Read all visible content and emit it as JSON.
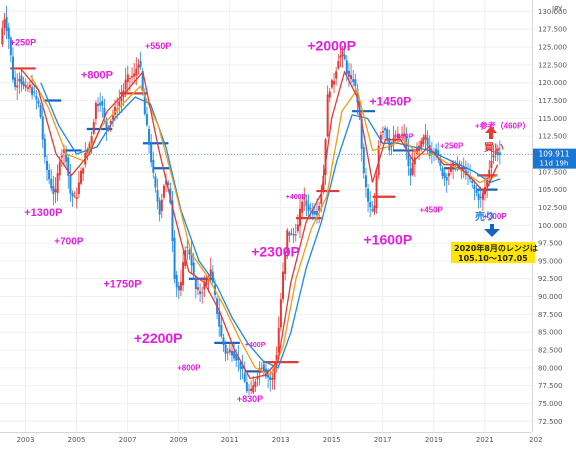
{
  "chart_data": {
    "type": "candlestick",
    "currency_label": "JPY",
    "x_ticks": [
      "2003",
      "2005",
      "2007",
      "2009",
      "2011",
      "2013",
      "2015",
      "2017",
      "2019",
      "2021",
      "202"
    ],
    "x_range": [
      2002.0,
      2022.85
    ],
    "y_ticks": [
      "130.000",
      "127.500",
      "125.000",
      "122.500",
      "120.000",
      "117.500",
      "115.000",
      "112.500",
      "110.000",
      "107.500",
      "105.000",
      "102.500",
      "100.000",
      "97.500",
      "95.000",
      "92.500",
      "90.000",
      "87.500",
      "85.000",
      "82.500",
      "80.000",
      "77.500",
      "75.000",
      "72.500"
    ],
    "y_range": [
      71.0,
      131.6
    ],
    "last_price": "109.911",
    "countdown": "11d 19h",
    "last_value": 109.911,
    "colors": {
      "up": "#e53935",
      "down": "#1e88e5",
      "ma_fast": "#e53935",
      "ma_mid": "#f39c12",
      "ma_slow": "#1e88e5",
      "level_up": "#e53935",
      "level_down": "#1565c0",
      "annotation": "#e71de2",
      "price_tag": "#1976d2"
    },
    "price_path": [
      [
        2002.0,
        124.0
      ],
      [
        2002.2,
        129.5
      ],
      [
        2002.4,
        126.0
      ],
      [
        2002.6,
        119.0
      ],
      [
        2002.8,
        121.0
      ],
      [
        2003.0,
        119.0
      ],
      [
        2003.2,
        119.5
      ],
      [
        2003.4,
        118.0
      ],
      [
        2003.6,
        116.5
      ],
      [
        2003.8,
        109.0
      ],
      [
        2004.0,
        106.0
      ],
      [
        2004.2,
        104.0
      ],
      [
        2004.4,
        110.0
      ],
      [
        2004.6,
        110.5
      ],
      [
        2004.8,
        104.5
      ],
      [
        2005.0,
        103.5
      ],
      [
        2005.2,
        107.0
      ],
      [
        2005.4,
        110.0
      ],
      [
        2005.6,
        112.0
      ],
      [
        2005.8,
        117.0
      ],
      [
        2006.0,
        117.5
      ],
      [
        2006.2,
        113.5
      ],
      [
        2006.4,
        115.0
      ],
      [
        2006.6,
        116.5
      ],
      [
        2006.8,
        118.0
      ],
      [
        2007.0,
        120.5
      ],
      [
        2007.3,
        121.0
      ],
      [
        2007.5,
        123.5
      ],
      [
        2007.7,
        116.0
      ],
      [
        2007.9,
        111.0
      ],
      [
        2008.1,
        105.5
      ],
      [
        2008.3,
        102.0
      ],
      [
        2008.5,
        106.5
      ],
      [
        2008.7,
        104.5
      ],
      [
        2008.9,
        92.0
      ],
      [
        2009.1,
        90.5
      ],
      [
        2009.3,
        97.0
      ],
      [
        2009.5,
        96.0
      ],
      [
        2009.7,
        91.0
      ],
      [
        2009.9,
        90.5
      ],
      [
        2010.1,
        92.0
      ],
      [
        2010.3,
        93.5
      ],
      [
        2010.5,
        89.0
      ],
      [
        2010.7,
        84.5
      ],
      [
        2010.9,
        82.0
      ],
      [
        2011.1,
        82.5
      ],
      [
        2011.3,
        81.5
      ],
      [
        2011.5,
        80.0
      ],
      [
        2011.7,
        77.0
      ],
      [
        2011.9,
        76.5
      ],
      [
        2012.1,
        79.0
      ],
      [
        2012.3,
        80.5
      ],
      [
        2012.5,
        79.0
      ],
      [
        2012.7,
        78.0
      ],
      [
        2012.9,
        82.5
      ],
      [
        2013.1,
        92.0
      ],
      [
        2013.3,
        99.0
      ],
      [
        2013.5,
        98.5
      ],
      [
        2013.7,
        99.5
      ],
      [
        2013.9,
        104.0
      ],
      [
        2014.1,
        102.5
      ],
      [
        2014.3,
        102.0
      ],
      [
        2014.5,
        102.0
      ],
      [
        2014.7,
        106.0
      ],
      [
        2014.9,
        119.0
      ],
      [
        2015.1,
        120.0
      ],
      [
        2015.3,
        123.5
      ],
      [
        2015.5,
        124.0
      ],
      [
        2015.7,
        120.5
      ],
      [
        2015.9,
        120.5
      ],
      [
        2016.1,
        116.5
      ],
      [
        2016.3,
        107.0
      ],
      [
        2016.5,
        102.5
      ],
      [
        2016.7,
        101.5
      ],
      [
        2016.9,
        112.5
      ],
      [
        2017.1,
        114.0
      ],
      [
        2017.3,
        111.0
      ],
      [
        2017.5,
        112.0
      ],
      [
        2017.7,
        112.5
      ],
      [
        2017.9,
        112.5
      ],
      [
        2018.1,
        106.5
      ],
      [
        2018.3,
        110.0
      ],
      [
        2018.5,
        111.0
      ],
      [
        2018.7,
        112.5
      ],
      [
        2018.9,
        110.0
      ],
      [
        2019.1,
        111.0
      ],
      [
        2019.3,
        108.0
      ],
      [
        2019.5,
        106.5
      ],
      [
        2019.7,
        108.0
      ],
      [
        2019.9,
        108.5
      ],
      [
        2020.1,
        108.0
      ],
      [
        2020.3,
        107.5
      ],
      [
        2020.5,
        106.0
      ],
      [
        2020.7,
        104.5
      ],
      [
        2020.9,
        103.5
      ],
      [
        2021.1,
        106.0
      ],
      [
        2021.3,
        109.5
      ],
      [
        2021.5,
        110.5
      ],
      [
        2021.6,
        109.9
      ]
    ],
    "ma_fast": [
      [
        2002.8,
        122.0
      ],
      [
        2003.5,
        119.0
      ],
      [
        2004.2,
        110.0
      ],
      [
        2004.8,
        107.0
      ],
      [
        2005.5,
        110.0
      ],
      [
        2006.2,
        116.0
      ],
      [
        2007.0,
        119.0
      ],
      [
        2007.6,
        121.5
      ],
      [
        2008.2,
        111.0
      ],
      [
        2008.8,
        102.0
      ],
      [
        2009.4,
        93.5
      ],
      [
        2010.0,
        92.0
      ],
      [
        2010.6,
        88.0
      ],
      [
        2011.2,
        82.5
      ],
      [
        2011.8,
        78.5
      ],
      [
        2012.4,
        79.0
      ],
      [
        2012.9,
        81.0
      ],
      [
        2013.4,
        92.0
      ],
      [
        2014.0,
        100.5
      ],
      [
        2014.6,
        104.5
      ],
      [
        2015.0,
        115.0
      ],
      [
        2015.5,
        121.5
      ],
      [
        2016.0,
        118.0
      ],
      [
        2016.6,
        106.0
      ],
      [
        2017.1,
        112.0
      ],
      [
        2017.7,
        112.0
      ],
      [
        2018.2,
        109.0
      ],
      [
        2018.8,
        111.0
      ],
      [
        2019.4,
        108.5
      ],
      [
        2019.9,
        108.5
      ],
      [
        2020.5,
        106.5
      ],
      [
        2021.0,
        104.5
      ],
      [
        2021.5,
        108.5
      ]
    ],
    "ma_mid": [
      [
        2003.2,
        121.0
      ],
      [
        2003.9,
        116.5
      ],
      [
        2004.6,
        110.0
      ],
      [
        2005.3,
        109.0
      ],
      [
        2006.0,
        114.0
      ],
      [
        2006.8,
        117.0
      ],
      [
        2007.5,
        119.5
      ],
      [
        2008.2,
        114.0
      ],
      [
        2008.8,
        106.0
      ],
      [
        2009.5,
        96.0
      ],
      [
        2010.1,
        93.0
      ],
      [
        2010.8,
        88.5
      ],
      [
        2011.4,
        84.0
      ],
      [
        2012.0,
        80.0
      ],
      [
        2012.6,
        79.0
      ],
      [
        2013.1,
        83.0
      ],
      [
        2013.6,
        92.5
      ],
      [
        2014.2,
        99.5
      ],
      [
        2014.8,
        104.0
      ],
      [
        2015.4,
        116.0
      ],
      [
        2016.0,
        119.0
      ],
      [
        2016.6,
        110.5
      ],
      [
        2017.2,
        111.0
      ],
      [
        2017.8,
        112.0
      ],
      [
        2018.4,
        110.0
      ],
      [
        2019.0,
        110.0
      ],
      [
        2019.6,
        108.5
      ],
      [
        2020.2,
        107.5
      ],
      [
        2020.8,
        106.0
      ],
      [
        2021.5,
        107.0
      ]
    ],
    "ma_slow": [
      [
        2003.6,
        120.0
      ],
      [
        2004.3,
        114.0
      ],
      [
        2005.0,
        110.0
      ],
      [
        2005.8,
        111.0
      ],
      [
        2006.5,
        115.0
      ],
      [
        2007.3,
        118.0
      ],
      [
        2007.9,
        117.0
      ],
      [
        2008.5,
        111.0
      ],
      [
        2009.1,
        102.0
      ],
      [
        2009.8,
        95.0
      ],
      [
        2010.5,
        91.5
      ],
      [
        2011.1,
        87.0
      ],
      [
        2011.7,
        83.5
      ],
      [
        2012.3,
        81.0
      ],
      [
        2012.9,
        80.0
      ],
      [
        2013.4,
        85.0
      ],
      [
        2014.0,
        94.0
      ],
      [
        2014.6,
        100.5
      ],
      [
        2015.2,
        109.0
      ],
      [
        2015.8,
        115.5
      ],
      [
        2016.4,
        115.0
      ],
      [
        2017.0,
        111.5
      ],
      [
        2017.6,
        111.5
      ],
      [
        2018.2,
        111.0
      ],
      [
        2018.8,
        110.5
      ],
      [
        2019.4,
        109.5
      ],
      [
        2020.0,
        108.5
      ],
      [
        2020.6,
        107.5
      ],
      [
        2021.2,
        106.0
      ],
      [
        2021.6,
        106.5
      ]
    ],
    "levels": [
      {
        "x1": 2002.4,
        "x2": 2003.4,
        "y": 122.0,
        "kind": "up"
      },
      {
        "x1": 2003.7,
        "x2": 2004.4,
        "y": 117.5,
        "kind": "down"
      },
      {
        "x1": 2004.5,
        "x2": 2005.2,
        "y": 110.5,
        "kind": "down"
      },
      {
        "x1": 2005.4,
        "x2": 2006.4,
        "y": 113.5,
        "kind": "down"
      },
      {
        "x1": 2006.7,
        "x2": 2007.8,
        "y": 118.5,
        "kind": "up"
      },
      {
        "x1": 2007.6,
        "x2": 2008.6,
        "y": 111.5,
        "kind": "down"
      },
      {
        "x1": 2008.0,
        "x2": 2008.7,
        "y": 108.0,
        "kind": "down"
      },
      {
        "x1": 2009.4,
        "x2": 2010.4,
        "y": 92.5,
        "kind": "down"
      },
      {
        "x1": 2010.4,
        "x2": 2011.4,
        "y": 83.5,
        "kind": "down"
      },
      {
        "x1": 2011.6,
        "x2": 2012.5,
        "y": 79.5,
        "kind": "down"
      },
      {
        "x1": 2012.3,
        "x2": 2013.7,
        "y": 80.8,
        "kind": "up"
      },
      {
        "x1": 2013.6,
        "x2": 2014.6,
        "y": 101.0,
        "kind": "up"
      },
      {
        "x1": 2014.4,
        "x2": 2015.3,
        "y": 104.8,
        "kind": "up"
      },
      {
        "x1": 2015.8,
        "x2": 2016.7,
        "y": 116.0,
        "kind": "down"
      },
      {
        "x1": 2016.6,
        "x2": 2017.5,
        "y": 104.0,
        "kind": "up"
      },
      {
        "x1": 2017.4,
        "x2": 2018.3,
        "y": 110.5,
        "kind": "down"
      },
      {
        "x1": 2019.4,
        "x2": 2020.3,
        "y": 108.0,
        "kind": "down"
      },
      {
        "x1": 2020.7,
        "x2": 2021.5,
        "y": 107.0,
        "kind": "up"
      },
      {
        "x1": 2020.7,
        "x2": 2021.5,
        "y": 105.0,
        "kind": "down"
      }
    ],
    "annotations": [
      {
        "text": "+250P",
        "x": 2002.9,
        "y": 125.2,
        "size": 9
      },
      {
        "text": "+800P",
        "x": 2005.8,
        "y": 120.6,
        "size": 11
      },
      {
        "text": "+550P",
        "x": 2008.2,
        "y": 124.7,
        "size": 9
      },
      {
        "text": "+2000P",
        "x": 2015.0,
        "y": 124.5,
        "size": 14
      },
      {
        "text": "+1450P",
        "x": 2017.3,
        "y": 116.8,
        "size": 12
      },
      {
        "text": "+130P",
        "x": 2017.8,
        "y": 112.2,
        "size": 7
      },
      {
        "text": "+参考（460P）",
        "x": 2021.7,
        "y": 113.6,
        "size": 8
      },
      {
        "text": "+250P",
        "x": 2019.7,
        "y": 110.8,
        "size": 8
      },
      {
        "text": "+1300P",
        "x": 2003.7,
        "y": 101.3,
        "size": 11
      },
      {
        "text": "+700P",
        "x": 2004.7,
        "y": 97.3,
        "size": 10
      },
      {
        "text": "+400P",
        "x": 2013.6,
        "y": 103.7,
        "size": 7
      },
      {
        "text": "+450P",
        "x": 2018.9,
        "y": 101.8,
        "size": 8
      },
      {
        "text": "+300P",
        "x": 2021.4,
        "y": 100.9,
        "size": 8
      },
      {
        "text": "+2300P",
        "x": 2012.8,
        "y": 95.6,
        "size": 14
      },
      {
        "text": "+1600P",
        "x": 2017.2,
        "y": 97.3,
        "size": 14
      },
      {
        "text": "+1750P",
        "x": 2006.8,
        "y": 91.3,
        "size": 11
      },
      {
        "text": "+2200P",
        "x": 2008.2,
        "y": 83.5,
        "size": 14
      },
      {
        "text": "+400P",
        "x": 2012.0,
        "y": 82.9,
        "size": 7
      },
      {
        "text": "+800P",
        "x": 2009.4,
        "y": 79.6,
        "size": 8
      },
      {
        "text": "+830P",
        "x": 2011.8,
        "y": 75.2,
        "size": 9
      }
    ],
    "label_buy": "買い",
    "label_sell": "売り",
    "note_line1": "2020年8月のレンジは",
    "note_line2": "105.10〜107.05"
  }
}
